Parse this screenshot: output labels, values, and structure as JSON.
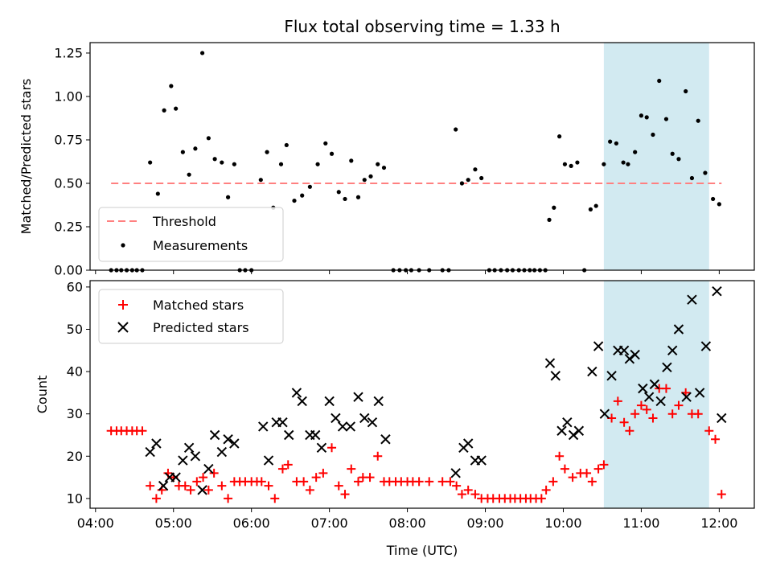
{
  "chart_data": [
    {
      "type": "scatter",
      "title": "Flux total observing time = 1.33 h",
      "xlabel": "",
      "ylabel": "Matched/Predicted stars",
      "xlim": [
        3.93,
        12.45
      ],
      "ylim": [
        0,
        1.31
      ],
      "yticks": [
        0,
        0.25,
        0.5,
        0.75,
        1.0,
        1.25
      ],
      "ytick_labels": [
        "0.00",
        "0.25",
        "0.50",
        "0.75",
        "1.00",
        "1.25"
      ],
      "shaded_interval": {
        "start": 10.52,
        "end": 11.87,
        "color": "#add8e6"
      },
      "threshold": {
        "name": "Threshold",
        "value": 0.5,
        "x_start": 4.2,
        "x_end": 12.03,
        "color": "#ff8080"
      },
      "legend": {
        "placement": "lower-left",
        "entries": [
          "Threshold",
          "Measurements"
        ]
      },
      "series": [
        {
          "name": "Measurements",
          "color": "#000000",
          "points": [
            [
              4.2,
              0
            ],
            [
              4.27,
              0
            ],
            [
              4.33,
              0
            ],
            [
              4.4,
              0
            ],
            [
              4.47,
              0
            ],
            [
              4.53,
              0
            ],
            [
              4.6,
              0
            ],
            [
              4.7,
              0.62
            ],
            [
              4.8,
              0.44
            ],
            [
              4.88,
              0.92
            ],
            [
              4.97,
              1.06
            ],
            [
              5.03,
              0.93
            ],
            [
              5.12,
              0.68
            ],
            [
              5.2,
              0.55
            ],
            [
              5.28,
              0.7
            ],
            [
              5.37,
              1.25
            ],
            [
              5.45,
              0.76
            ],
            [
              5.53,
              0.64
            ],
            [
              5.62,
              0.62
            ],
            [
              5.7,
              0.42
            ],
            [
              5.78,
              0.61
            ],
            [
              5.85,
              0
            ],
            [
              5.92,
              0
            ],
            [
              6.0,
              0
            ],
            [
              6.12,
              0.52
            ],
            [
              6.2,
              0.68
            ],
            [
              6.28,
              0.36
            ],
            [
              6.38,
              0.61
            ],
            [
              6.45,
              0.72
            ],
            [
              6.55,
              0.4
            ],
            [
              6.65,
              0.43
            ],
            [
              6.75,
              0.48
            ],
            [
              6.85,
              0.61
            ],
            [
              6.95,
              0.73
            ],
            [
              7.03,
              0.67
            ],
            [
              7.12,
              0.45
            ],
            [
              7.2,
              0.41
            ],
            [
              7.28,
              0.63
            ],
            [
              7.37,
              0.42
            ],
            [
              7.45,
              0.52
            ],
            [
              7.53,
              0.54
            ],
            [
              7.62,
              0.61
            ],
            [
              7.7,
              0.59
            ],
            [
              7.82,
              0
            ],
            [
              7.9,
              0
            ],
            [
              7.98,
              0
            ],
            [
              8.05,
              0
            ],
            [
              8.15,
              0
            ],
            [
              8.28,
              0
            ],
            [
              8.45,
              0
            ],
            [
              8.53,
              0
            ],
            [
              8.62,
              0.81
            ],
            [
              8.7,
              0.5
            ],
            [
              8.78,
              0.52
            ],
            [
              8.87,
              0.58
            ],
            [
              8.95,
              0.53
            ],
            [
              9.05,
              0
            ],
            [
              9.12,
              0
            ],
            [
              9.2,
              0
            ],
            [
              9.28,
              0
            ],
            [
              9.35,
              0
            ],
            [
              9.43,
              0
            ],
            [
              9.5,
              0
            ],
            [
              9.57,
              0
            ],
            [
              9.63,
              0
            ],
            [
              9.7,
              0
            ],
            [
              9.77,
              0
            ],
            [
              9.82,
              0.29
            ],
            [
              9.88,
              0.36
            ],
            [
              9.95,
              0.77
            ],
            [
              10.02,
              0.61
            ],
            [
              10.1,
              0.6
            ],
            [
              10.18,
              0.62
            ],
            [
              10.27,
              0
            ],
            [
              10.35,
              0.35
            ],
            [
              10.42,
              0.37
            ],
            [
              10.52,
              0.61
            ],
            [
              10.6,
              0.74
            ],
            [
              10.68,
              0.73
            ],
            [
              10.77,
              0.62
            ],
            [
              10.83,
              0.61
            ],
            [
              10.92,
              0.68
            ],
            [
              11.0,
              0.89
            ],
            [
              11.07,
              0.88
            ],
            [
              11.15,
              0.78
            ],
            [
              11.23,
              1.09
            ],
            [
              11.32,
              0.87
            ],
            [
              11.4,
              0.67
            ],
            [
              11.48,
              0.64
            ],
            [
              11.57,
              1.03
            ],
            [
              11.65,
              0.53
            ],
            [
              11.73,
              0.86
            ],
            [
              11.82,
              0.56
            ],
            [
              11.92,
              0.41
            ],
            [
              12.0,
              0.38
            ]
          ]
        }
      ]
    },
    {
      "type": "scatter",
      "title": "",
      "xlabel": "Time (UTC)",
      "ylabel": "Count",
      "xlim": [
        3.93,
        12.45
      ],
      "ylim": [
        7.7,
        61.5
      ],
      "yticks": [
        10,
        20,
        30,
        40,
        50,
        60
      ],
      "ytick_labels": [
        "10",
        "20",
        "30",
        "40",
        "50",
        "60"
      ],
      "xticks": [
        4,
        5,
        6,
        7,
        8,
        9,
        10,
        11,
        12
      ],
      "xtick_labels": [
        "04:00",
        "05:00",
        "06:00",
        "07:00",
        "08:00",
        "09:00",
        "10:00",
        "11:00",
        "12:00"
      ],
      "shaded_interval": {
        "start": 10.52,
        "end": 11.87,
        "color": "#add8e6"
      },
      "legend": {
        "placement": "upper-left",
        "entries": [
          "Matched stars",
          "Predicted stars"
        ]
      },
      "series": [
        {
          "name": "Matched stars",
          "marker": "plus",
          "color": "#ff0000",
          "points": [
            [
              4.2,
              26
            ],
            [
              4.27,
              26
            ],
            [
              4.33,
              26
            ],
            [
              4.4,
              26
            ],
            [
              4.47,
              26
            ],
            [
              4.53,
              26
            ],
            [
              4.6,
              26
            ],
            [
              4.7,
              13
            ],
            [
              4.78,
              10
            ],
            [
              4.85,
              12
            ],
            [
              4.93,
              16
            ],
            [
              5.0,
              15
            ],
            [
              5.07,
              13
            ],
            [
              5.15,
              13
            ],
            [
              5.22,
              12
            ],
            [
              5.3,
              14
            ],
            [
              5.38,
              15
            ],
            [
              5.45,
              12
            ],
            [
              5.52,
              16
            ],
            [
              5.62,
              13
            ],
            [
              5.7,
              10
            ],
            [
              5.78,
              14
            ],
            [
              5.85,
              14
            ],
            [
              5.92,
              14
            ],
            [
              6.0,
              14
            ],
            [
              6.07,
              14
            ],
            [
              6.13,
              14
            ],
            [
              6.22,
              13
            ],
            [
              6.3,
              10
            ],
            [
              6.4,
              17
            ],
            [
              6.47,
              18
            ],
            [
              6.58,
              14
            ],
            [
              6.67,
              14
            ],
            [
              6.75,
              12
            ],
            [
              6.83,
              15
            ],
            [
              6.92,
              16
            ],
            [
              7.03,
              22
            ],
            [
              7.12,
              13
            ],
            [
              7.2,
              11
            ],
            [
              7.28,
              17
            ],
            [
              7.37,
              14
            ],
            [
              7.43,
              15
            ],
            [
              7.52,
              15
            ],
            [
              7.62,
              20
            ],
            [
              7.7,
              14
            ],
            [
              7.77,
              14
            ],
            [
              7.85,
              14
            ],
            [
              7.92,
              14
            ],
            [
              8.0,
              14
            ],
            [
              8.07,
              14
            ],
            [
              8.15,
              14
            ],
            [
              8.28,
              14
            ],
            [
              8.45,
              14
            ],
            [
              8.55,
              14
            ],
            [
              8.63,
              13
            ],
            [
              8.7,
              11
            ],
            [
              8.78,
              12
            ],
            [
              8.87,
              11
            ],
            [
              8.95,
              10
            ],
            [
              9.03,
              10
            ],
            [
              9.1,
              10
            ],
            [
              9.18,
              10
            ],
            [
              9.25,
              10
            ],
            [
              9.32,
              10
            ],
            [
              9.38,
              10
            ],
            [
              9.45,
              10
            ],
            [
              9.52,
              10
            ],
            [
              9.58,
              10
            ],
            [
              9.65,
              10
            ],
            [
              9.72,
              10
            ],
            [
              9.78,
              12
            ],
            [
              9.87,
              14
            ],
            [
              9.95,
              20
            ],
            [
              10.02,
              17
            ],
            [
              10.12,
              15
            ],
            [
              10.22,
              16
            ],
            [
              10.3,
              16
            ],
            [
              10.37,
              14
            ],
            [
              10.45,
              17
            ],
            [
              10.52,
              18
            ],
            [
              10.62,
              29
            ],
            [
              10.7,
              33
            ],
            [
              10.78,
              28
            ],
            [
              10.85,
              26
            ],
            [
              10.92,
              30
            ],
            [
              11.0,
              32
            ],
            [
              11.07,
              31
            ],
            [
              11.15,
              29
            ],
            [
              11.23,
              36
            ],
            [
              11.32,
              36
            ],
            [
              11.4,
              30
            ],
            [
              11.48,
              32
            ],
            [
              11.57,
              35
            ],
            [
              11.65,
              30
            ],
            [
              11.73,
              30
            ],
            [
              11.87,
              26
            ],
            [
              11.95,
              24
            ],
            [
              12.03,
              11
            ]
          ]
        },
        {
          "name": "Predicted stars",
          "marker": "x",
          "color": "#000000",
          "points": [
            [
              4.7,
              21
            ],
            [
              4.78,
              23
            ],
            [
              4.87,
              13
            ],
            [
              4.95,
              15
            ],
            [
              5.03,
              15
            ],
            [
              5.12,
              19
            ],
            [
              5.2,
              22
            ],
            [
              5.28,
              20
            ],
            [
              5.37,
              12
            ],
            [
              5.45,
              17
            ],
            [
              5.53,
              25
            ],
            [
              5.62,
              21
            ],
            [
              5.7,
              24
            ],
            [
              5.78,
              23
            ],
            [
              6.15,
              27
            ],
            [
              6.22,
              19
            ],
            [
              6.32,
              28
            ],
            [
              6.4,
              28
            ],
            [
              6.48,
              25
            ],
            [
              6.58,
              35
            ],
            [
              6.65,
              33
            ],
            [
              6.75,
              25
            ],
            [
              6.82,
              25
            ],
            [
              6.9,
              22
            ],
            [
              7.0,
              33
            ],
            [
              7.08,
              29
            ],
            [
              7.17,
              27
            ],
            [
              7.27,
              27
            ],
            [
              7.37,
              34
            ],
            [
              7.45,
              29
            ],
            [
              7.55,
              28
            ],
            [
              7.63,
              33
            ],
            [
              7.72,
              24
            ],
            [
              8.62,
              16
            ],
            [
              8.72,
              22
            ],
            [
              8.78,
              23
            ],
            [
              8.87,
              19
            ],
            [
              8.95,
              19
            ],
            [
              9.83,
              42
            ],
            [
              9.9,
              39
            ],
            [
              9.98,
              26
            ],
            [
              10.05,
              28
            ],
            [
              10.13,
              25
            ],
            [
              10.2,
              26
            ],
            [
              10.37,
              40
            ],
            [
              10.45,
              46
            ],
            [
              10.53,
              30
            ],
            [
              10.62,
              39
            ],
            [
              10.7,
              45
            ],
            [
              10.78,
              45
            ],
            [
              10.85,
              43
            ],
            [
              10.92,
              44
            ],
            [
              11.02,
              36
            ],
            [
              11.1,
              34
            ],
            [
              11.17,
              37
            ],
            [
              11.25,
              33
            ],
            [
              11.33,
              41
            ],
            [
              11.4,
              45
            ],
            [
              11.48,
              50
            ],
            [
              11.58,
              34
            ],
            [
              11.65,
              57
            ],
            [
              11.75,
              35
            ],
            [
              11.83,
              46
            ],
            [
              11.97,
              59
            ],
            [
              12.03,
              29
            ]
          ]
        }
      ]
    }
  ]
}
